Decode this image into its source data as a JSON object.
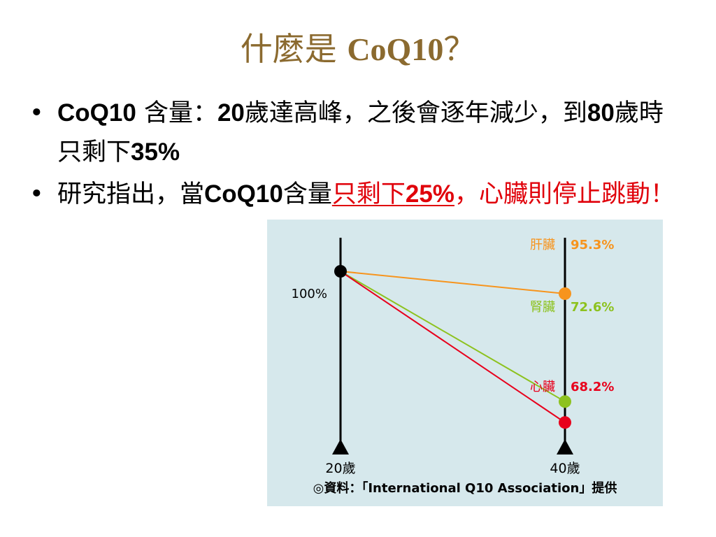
{
  "slide": {
    "title_cjk": "什麼是",
    "title_latin": "CoQ10",
    "title_q": "？",
    "bullet1": {
      "part1": "CoQ10",
      "part2": "含量：",
      "part3": "20",
      "part4": "歲達高峰，之後會逐年減少，到",
      "part5": "80",
      "part6": "歲時只剩下",
      "part7": "35%"
    },
    "bullet2": {
      "part1": "研究指出，當",
      "part2": "CoQ10",
      "part3": "含量",
      "part4": "只剩下",
      "part5": "25%",
      "part6": "，",
      "part7": "心臟則停止跳動！"
    }
  },
  "chart_data": {
    "type": "line",
    "x": [
      "20歲",
      "40歲"
    ],
    "y_start_label": "100%",
    "ylim": [
      55,
      105
    ],
    "series": [
      {
        "name": "肝臟",
        "label": "95.3%",
        "values": [
          100,
          95.3
        ],
        "color": "#f7941d"
      },
      {
        "name": "腎臟",
        "label": "72.6%",
        "values": [
          100,
          72.6
        ],
        "color": "#8dc21f"
      },
      {
        "name": "心臟",
        "label": "68.2%",
        "values": [
          100,
          68.2
        ],
        "color": "#e8001c"
      }
    ],
    "source": "◎資料：「International Q10 Association」提供"
  }
}
